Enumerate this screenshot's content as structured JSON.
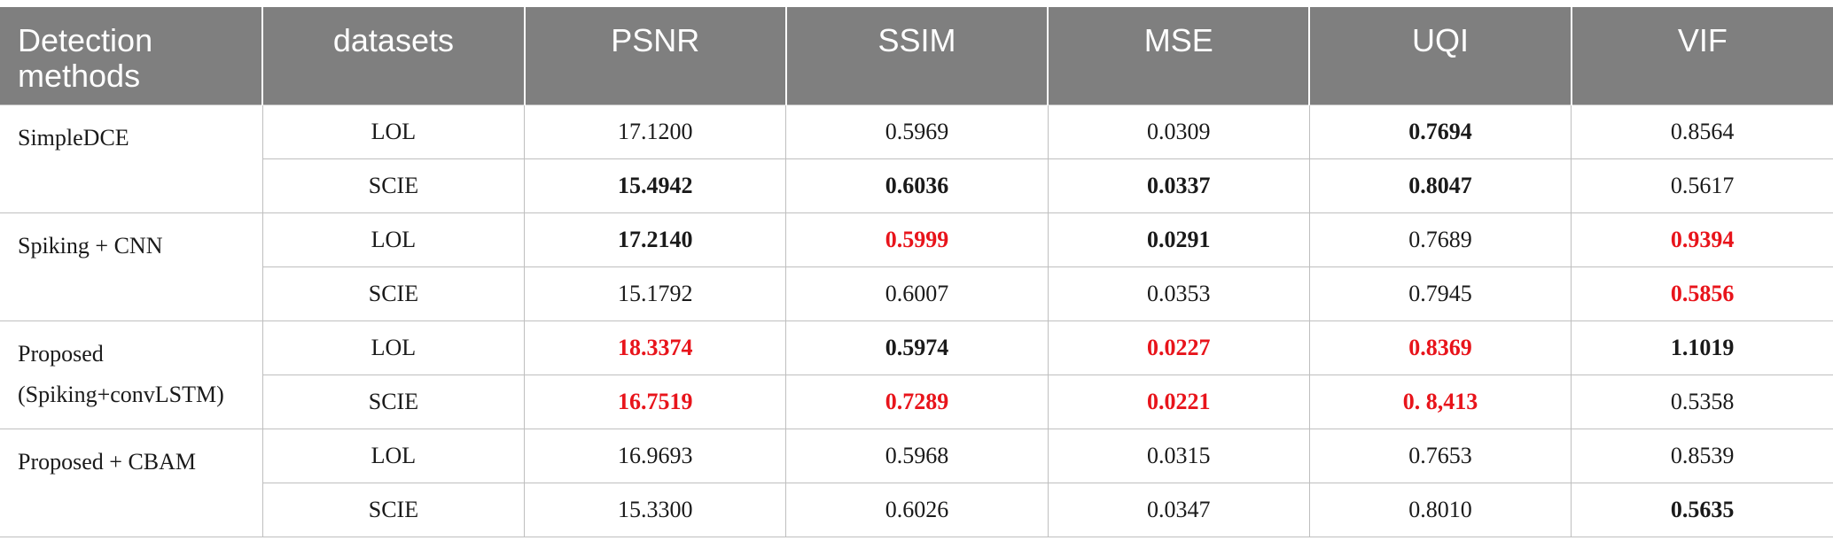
{
  "header": {
    "method_label": "Detection methods",
    "dataset_label": "datasets",
    "metrics": [
      "PSNR",
      "SSIM",
      "MSE",
      "UQI",
      "VIF"
    ]
  },
  "groups": [
    {
      "method": "SimpleDCE",
      "method_line2": "",
      "rows": [
        {
          "dataset": "LOL",
          "values": [
            "17.1200",
            "0.5969",
            "0.0309",
            "0.7694",
            "0.8564"
          ],
          "style": [
            "",
            "",
            "",
            "bold",
            ""
          ]
        },
        {
          "dataset": "SCIE",
          "values": [
            "15.4942",
            "0.6036",
            "0.0337",
            "0.8047",
            "0.5617"
          ],
          "style": [
            "bold",
            "bold",
            "bold",
            "bold",
            ""
          ]
        }
      ]
    },
    {
      "method": "Spiking + CNN",
      "method_line2": "",
      "rows": [
        {
          "dataset": "LOL",
          "values": [
            "17.2140",
            "0.5999",
            "0.0291",
            "0.7689",
            "0.9394"
          ],
          "style": [
            "bold",
            "red",
            "bold",
            "",
            "red"
          ]
        },
        {
          "dataset": "SCIE",
          "values": [
            "15.1792",
            "0.6007",
            "0.0353",
            "0.7945",
            "0.5856"
          ],
          "style": [
            "",
            "",
            "",
            "",
            "red"
          ]
        }
      ]
    },
    {
      "method": "Proposed",
      "method_line2": "(Spiking+convLSTM)",
      "rows": [
        {
          "dataset": "LOL",
          "values": [
            "18.3374",
            "0.5974",
            "0.0227",
            "0.8369",
            "1.1019"
          ],
          "style": [
            "red",
            "bold",
            "red",
            "red",
            "bold"
          ]
        },
        {
          "dataset": "SCIE",
          "values": [
            "16.7519",
            "0.7289",
            "0.0221",
            "0. 8,413",
            "0.5358"
          ],
          "style": [
            "red",
            "red",
            "red",
            "red",
            ""
          ]
        }
      ]
    },
    {
      "method": "Proposed + CBAM",
      "method_line2": "",
      "rows": [
        {
          "dataset": "LOL",
          "values": [
            "16.9693",
            "0.5968",
            "0.0315",
            "0.7653",
            "0.8539"
          ],
          "style": [
            "",
            "",
            "",
            "",
            ""
          ]
        },
        {
          "dataset": "SCIE",
          "values": [
            "15.3300",
            "0.6026",
            "0.0347",
            "0.8010",
            "0.5635"
          ],
          "style": [
            "",
            "",
            "",
            "",
            "bold"
          ]
        }
      ]
    }
  ],
  "colors": {
    "header_bg": "#7f7f7f",
    "header_text": "#ffffff",
    "best_highlight": "#e8141b",
    "grid_line": "#bfbfbf"
  }
}
